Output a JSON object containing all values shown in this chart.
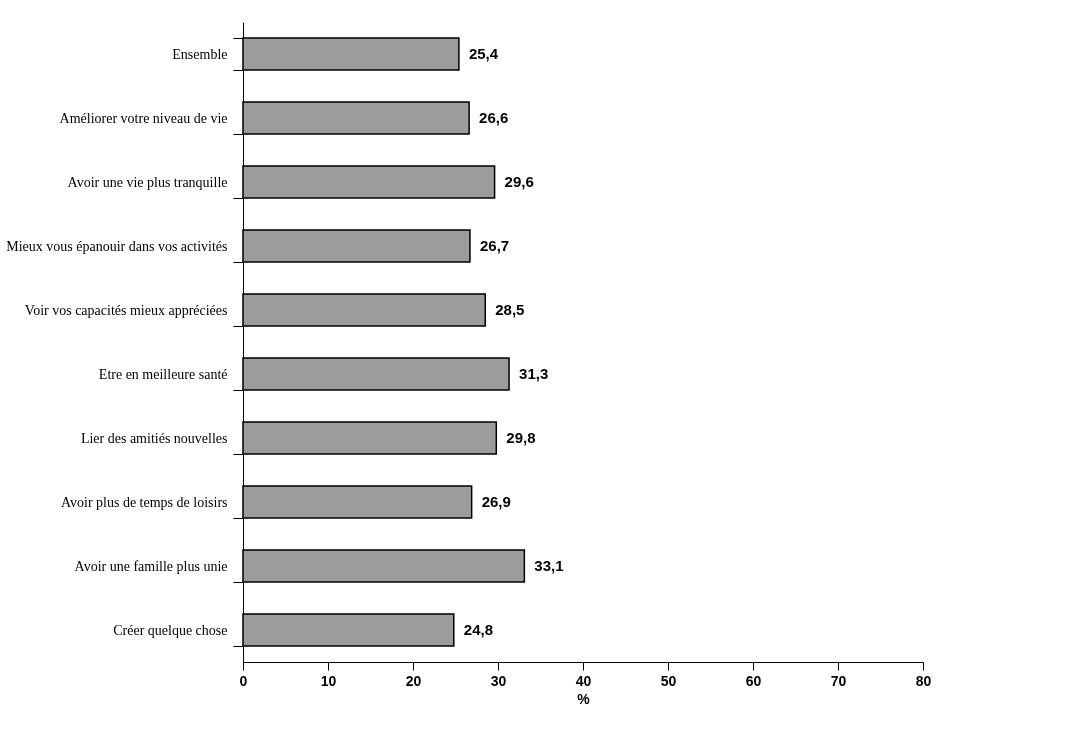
{
  "chart_data": {
    "type": "bar",
    "orientation": "horizontal",
    "xlabel": "%",
    "categories": [
      "Ensemble",
      "Améliorer votre niveau de vie",
      "Avoir une vie plus tranquille",
      "Mieux vous épanouir dans vos activités",
      "Voir vos capacités mieux appréciées",
      "Etre en meilleure santé",
      "Lier des amitiés nouvelles",
      "Avoir plus de temps de loisirs",
      "Avoir une famille plus unie",
      "Créer quelque chose"
    ],
    "values": [
      25.4,
      26.6,
      29.6,
      26.7,
      28.5,
      31.3,
      29.8,
      26.9,
      33.1,
      24.8
    ],
    "value_labels": [
      "25,4",
      "26,6",
      "29,6",
      "26,7",
      "28,5",
      "31,3",
      "29,8",
      "26,9",
      "33,1",
      "24,8"
    ],
    "color": "#9c9c9c",
    "xlim": [
      0,
      80
    ],
    "xticks": [
      0,
      10,
      20,
      30,
      40,
      50,
      60,
      70,
      80
    ],
    "grid": false
  }
}
